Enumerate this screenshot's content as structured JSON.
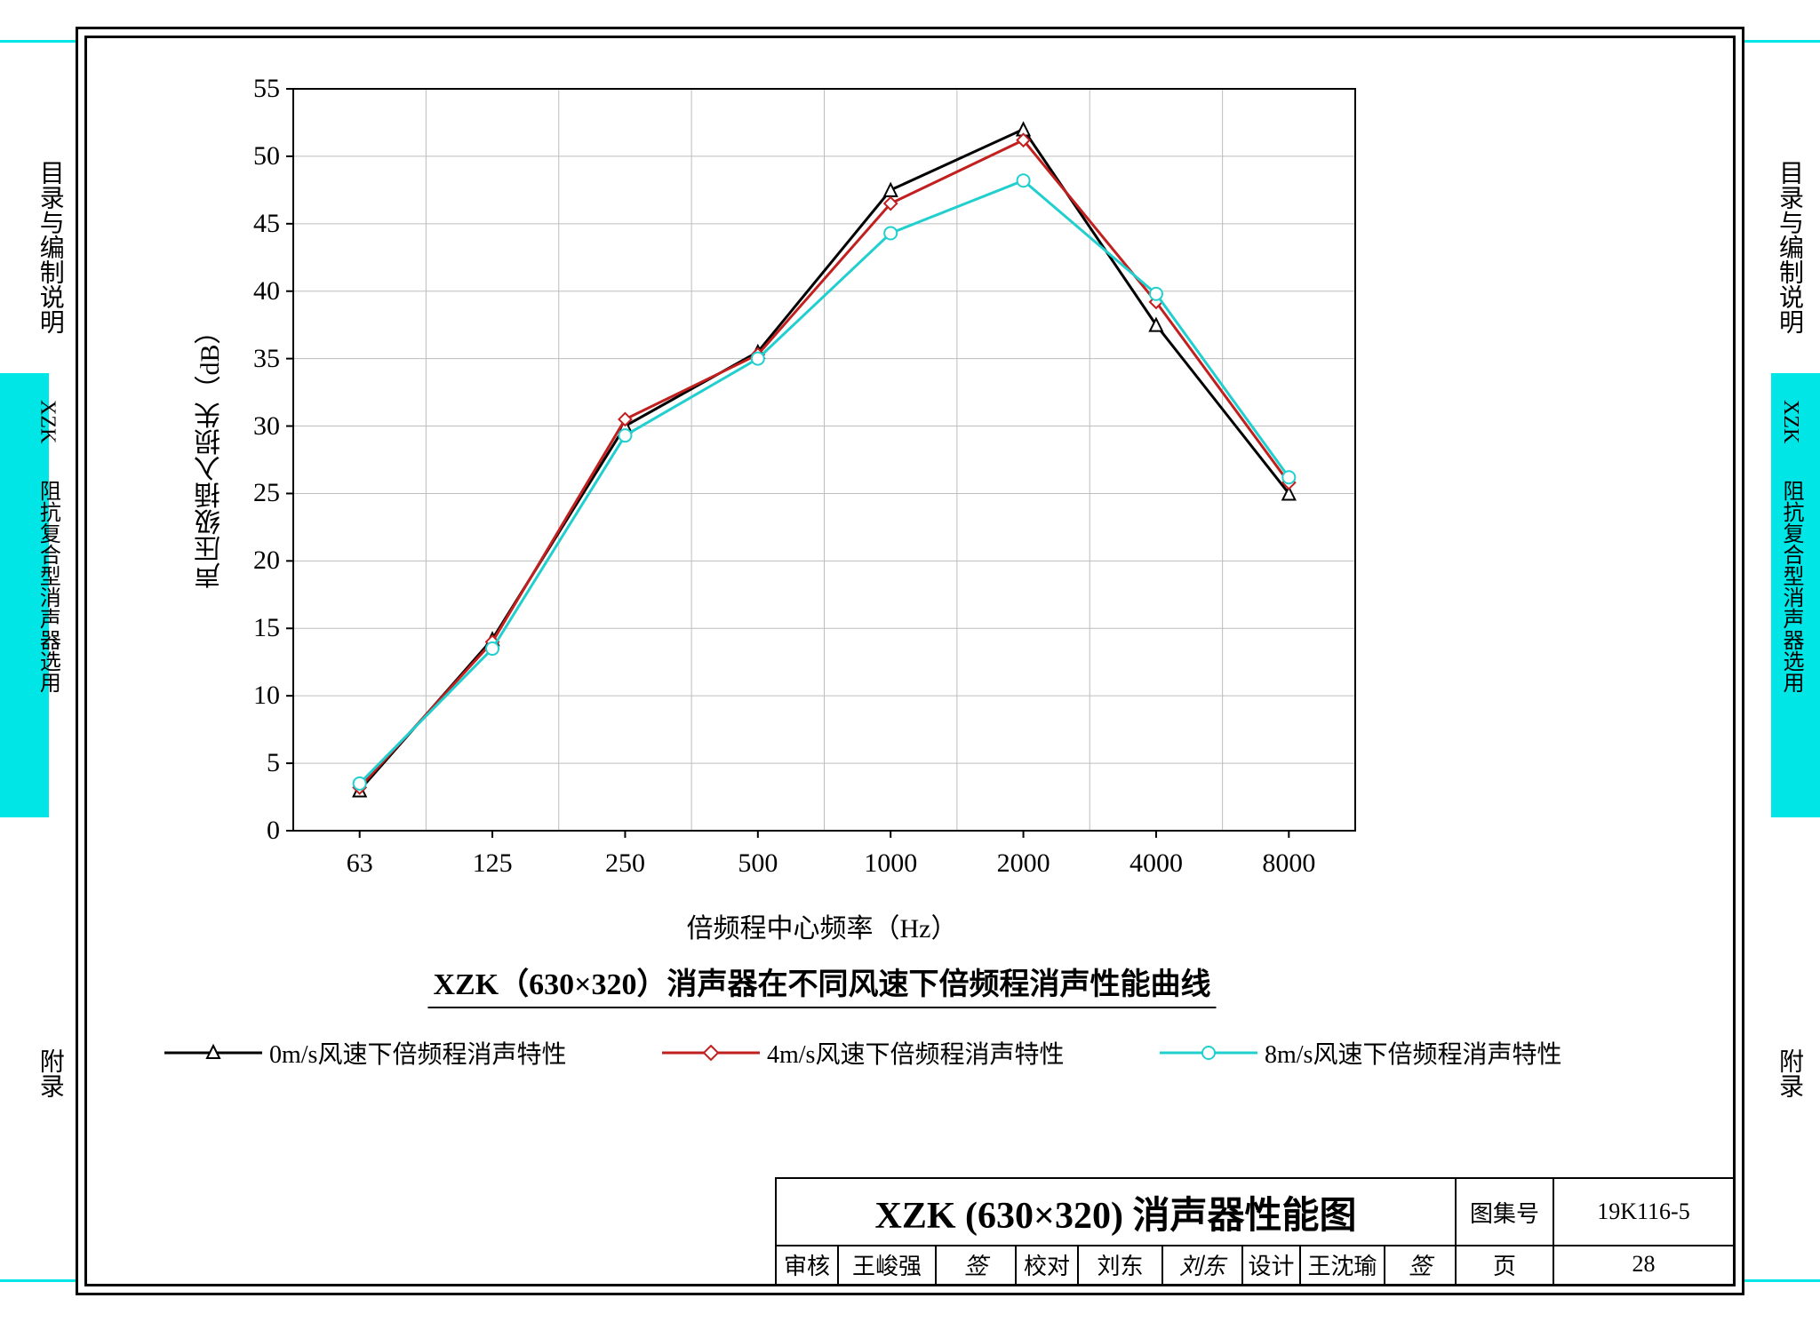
{
  "side_tabs": {
    "top_label": "目录与编制说明",
    "mid_label_latin": "XZK",
    "mid_label": "阻抗复合型消声器选用",
    "bottom_label": "附录"
  },
  "chart": {
    "type": "line",
    "title": "XZK（630×320）消声器在不同风速下倍频程消声性能曲线",
    "xlabel": "倍频程中心频率（Hz）",
    "ylabel": "声压级插入损失（dB）",
    "x_categories": [
      "63",
      "125",
      "250",
      "500",
      "1000",
      "2000",
      "4000",
      "8000"
    ],
    "y_ticks": [
      0,
      5,
      10,
      15,
      20,
      25,
      30,
      35,
      40,
      45,
      50,
      55
    ],
    "ylim": [
      0,
      55
    ],
    "grid_color": "#bdbdbd",
    "axis_color": "#000000",
    "background_color": "#ffffff",
    "axis_fontsize": 30,
    "title_fontsize": 34,
    "line_width": 3,
    "marker_size": 14,
    "series": [
      {
        "name": "0m/s风速下倍频程消声特性",
        "color": "#000000",
        "marker": "triangle",
        "values": [
          3.0,
          14.2,
          30.0,
          35.5,
          47.5,
          52.0,
          37.5,
          25.0
        ]
      },
      {
        "name": "4m/s风速下倍频程消声特性",
        "color": "#c21f1f",
        "marker": "diamond",
        "values": [
          3.2,
          14.0,
          30.5,
          35.3,
          46.5,
          51.2,
          39.2,
          25.8
        ]
      },
      {
        "name": "8m/s风速下倍频程消声特性",
        "color": "#22cfcf",
        "marker": "circle",
        "values": [
          3.5,
          13.5,
          29.3,
          35.0,
          44.3,
          48.2,
          39.8,
          26.2
        ]
      }
    ]
  },
  "titleblock": {
    "main_title": "XZK (630×320) 消声器性能图",
    "book_no_label": "图集号",
    "book_no": "19K116-5",
    "page_label": "页",
    "page_no": "28",
    "review_label": "审核",
    "reviewer": "王峻强",
    "check_label": "校对",
    "checker": "刘东",
    "design_label": "设计",
    "designer": "王沈瑜"
  }
}
